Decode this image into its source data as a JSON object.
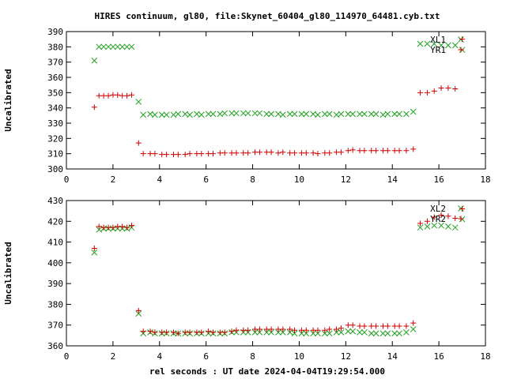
{
  "title": "HIRES continuum, gl80, file:Skynet_60404_gl80_114970_64481.cyb.txt",
  "xlabel": "rel seconds : UT date 2024-04-04T19:29:54.000",
  "colors": {
    "red_series": "#d00000",
    "green_series": "#20a020"
  },
  "chart_data": [
    {
      "type": "scatter",
      "ylabel": "Uncalibrated",
      "xlim": [
        0,
        18
      ],
      "ylim": [
        300,
        390
      ],
      "xticks": [
        0,
        2,
        4,
        6,
        8,
        10,
        12,
        14,
        16,
        18
      ],
      "yticks": [
        300,
        310,
        320,
        330,
        340,
        350,
        360,
        370,
        380,
        390
      ],
      "legend_position": "top-right",
      "series": [
        {
          "name": "XL1",
          "marker": "x",
          "color": "#20a020",
          "x": [
            1.2,
            1.4,
            1.6,
            1.8,
            2.0,
            2.2,
            2.4,
            2.6,
            2.8,
            3.1,
            3.3,
            3.6,
            3.8,
            4.1,
            4.3,
            4.6,
            4.8,
            5.1,
            5.3,
            5.6,
            5.8,
            6.1,
            6.3,
            6.6,
            6.8,
            7.1,
            7.3,
            7.6,
            7.8,
            8.1,
            8.3,
            8.6,
            8.8,
            9.1,
            9.3,
            9.6,
            9.8,
            10.1,
            10.3,
            10.6,
            10.8,
            11.1,
            11.3,
            11.6,
            11.8,
            12.1,
            12.3,
            12.6,
            12.8,
            13.1,
            13.3,
            13.6,
            13.8,
            14.1,
            14.3,
            14.6,
            14.9,
            15.2,
            15.5,
            15.8,
            16.1,
            16.4,
            16.7,
            17.0
          ],
          "y": [
            371,
            380,
            380,
            380,
            380,
            380,
            380,
            380,
            380,
            344,
            335.5,
            336,
            335.5,
            335.5,
            335.5,
            335.5,
            336,
            336,
            335.5,
            336,
            335.5,
            336,
            336,
            336,
            336.5,
            336.5,
            336.5,
            336.5,
            336.5,
            336.5,
            336.5,
            336,
            336,
            336,
            335.5,
            336,
            336,
            336,
            336,
            336,
            335.5,
            336,
            336,
            335.5,
            336,
            336,
            336,
            336,
            336,
            336,
            336,
            335.5,
            336,
            336,
            336,
            336,
            337.5,
            382,
            382,
            382,
            381,
            381,
            381,
            378
          ]
        },
        {
          "name": "YR1",
          "marker": "+",
          "color": "#d00000",
          "x": [
            1.2,
            1.4,
            1.6,
            1.8,
            2.0,
            2.2,
            2.4,
            2.6,
            2.8,
            3.1,
            3.3,
            3.6,
            3.8,
            4.1,
            4.3,
            4.6,
            4.8,
            5.1,
            5.3,
            5.6,
            5.8,
            6.1,
            6.3,
            6.6,
            6.8,
            7.1,
            7.3,
            7.6,
            7.8,
            8.1,
            8.3,
            8.6,
            8.8,
            9.1,
            9.3,
            9.6,
            9.8,
            10.1,
            10.3,
            10.6,
            10.8,
            11.1,
            11.3,
            11.6,
            11.8,
            12.1,
            12.3,
            12.6,
            12.8,
            13.1,
            13.3,
            13.6,
            13.8,
            14.1,
            14.3,
            14.6,
            14.9,
            15.2,
            15.5,
            15.8,
            16.1,
            16.4,
            16.7,
            17.0
          ],
          "y": [
            340.5,
            348,
            348,
            348,
            348.5,
            348.5,
            348,
            348,
            348.5,
            317,
            310,
            310,
            310,
            309.5,
            309.5,
            309.5,
            309.5,
            309.5,
            310,
            310,
            310,
            310,
            310,
            310.5,
            310.5,
            310.5,
            310.5,
            310.5,
            310.5,
            311,
            311,
            311,
            311,
            310.5,
            311,
            310.5,
            310.5,
            310.5,
            310.5,
            310.5,
            310,
            310.5,
            310.5,
            311,
            311,
            312,
            312.5,
            312,
            312,
            312,
            312,
            312,
            312,
            312,
            312,
            312,
            313,
            350,
            350,
            351,
            353,
            353,
            352.5,
            385
          ]
        }
      ]
    },
    {
      "type": "scatter",
      "ylabel": "Uncalibrated",
      "xlim": [
        0,
        18
      ],
      "ylim": [
        360,
        430
      ],
      "xticks": [
        0,
        2,
        4,
        6,
        8,
        10,
        12,
        14,
        16,
        18
      ],
      "yticks": [
        360,
        370,
        380,
        390,
        400,
        410,
        420,
        430
      ],
      "legend_position": "top-right",
      "series": [
        {
          "name": "XL2",
          "marker": "x",
          "color": "#20a020",
          "x": [
            1.2,
            1.4,
            1.6,
            1.8,
            2.0,
            2.2,
            2.4,
            2.6,
            2.8,
            3.1,
            3.3,
            3.6,
            3.8,
            4.1,
            4.3,
            4.6,
            4.8,
            5.1,
            5.3,
            5.6,
            5.8,
            6.1,
            6.3,
            6.6,
            6.8,
            7.1,
            7.3,
            7.6,
            7.8,
            8.1,
            8.3,
            8.6,
            8.8,
            9.1,
            9.3,
            9.6,
            9.8,
            10.1,
            10.3,
            10.6,
            10.8,
            11.1,
            11.3,
            11.6,
            11.8,
            12.1,
            12.3,
            12.6,
            12.8,
            13.1,
            13.3,
            13.6,
            13.8,
            14.1,
            14.3,
            14.6,
            14.9,
            15.2,
            15.5,
            15.8,
            16.1,
            16.4,
            16.7,
            17.0
          ],
          "y": [
            405,
            416,
            416.5,
            416.5,
            416.5,
            416.5,
            416.5,
            416.5,
            417,
            375.5,
            366,
            366.5,
            366,
            366,
            366,
            366,
            366,
            366,
            366,
            366,
            366,
            366,
            366,
            366,
            366,
            366.5,
            366.5,
            366.5,
            366.5,
            366.5,
            366.5,
            366.5,
            366.5,
            366.5,
            366.5,
            366.5,
            366,
            366,
            366,
            366,
            366,
            366,
            366,
            366.5,
            366.5,
            367,
            367,
            366.5,
            366.5,
            366,
            366,
            366,
            366,
            366,
            366,
            366.5,
            368,
            417,
            417.5,
            418,
            418,
            417.5,
            417,
            421
          ]
        },
        {
          "name": "YR2",
          "marker": "+",
          "color": "#d00000",
          "x": [
            1.2,
            1.4,
            1.6,
            1.8,
            2.0,
            2.2,
            2.4,
            2.6,
            2.8,
            3.1,
            3.3,
            3.6,
            3.8,
            4.1,
            4.3,
            4.6,
            4.8,
            5.1,
            5.3,
            5.6,
            5.8,
            6.1,
            6.3,
            6.6,
            6.8,
            7.1,
            7.3,
            7.6,
            7.8,
            8.1,
            8.3,
            8.6,
            8.8,
            9.1,
            9.3,
            9.6,
            9.8,
            10.1,
            10.3,
            10.6,
            10.8,
            11.1,
            11.3,
            11.6,
            11.8,
            12.1,
            12.3,
            12.6,
            12.8,
            13.1,
            13.3,
            13.6,
            13.8,
            14.1,
            14.3,
            14.6,
            14.9,
            15.2,
            15.5,
            15.8,
            16.1,
            16.4,
            16.7,
            17.0
          ],
          "y": [
            407,
            417.5,
            417,
            417,
            417,
            417.5,
            417.5,
            417,
            418,
            377,
            367,
            367,
            366.5,
            366.5,
            366.5,
            366.5,
            366,
            366.5,
            366.5,
            366.5,
            366.5,
            367,
            366.5,
            366.5,
            366.5,
            367,
            367.5,
            367.5,
            367.5,
            368,
            368,
            368,
            368,
            368,
            368,
            368,
            367.5,
            367.5,
            367.5,
            367.5,
            367.5,
            367.5,
            368,
            368,
            368.5,
            370,
            370,
            369.5,
            369.5,
            369.5,
            369.5,
            369.5,
            369.5,
            369.5,
            369.5,
            369.5,
            371,
            419,
            420,
            422,
            423,
            422.5,
            421.5,
            426
          ]
        }
      ]
    }
  ]
}
